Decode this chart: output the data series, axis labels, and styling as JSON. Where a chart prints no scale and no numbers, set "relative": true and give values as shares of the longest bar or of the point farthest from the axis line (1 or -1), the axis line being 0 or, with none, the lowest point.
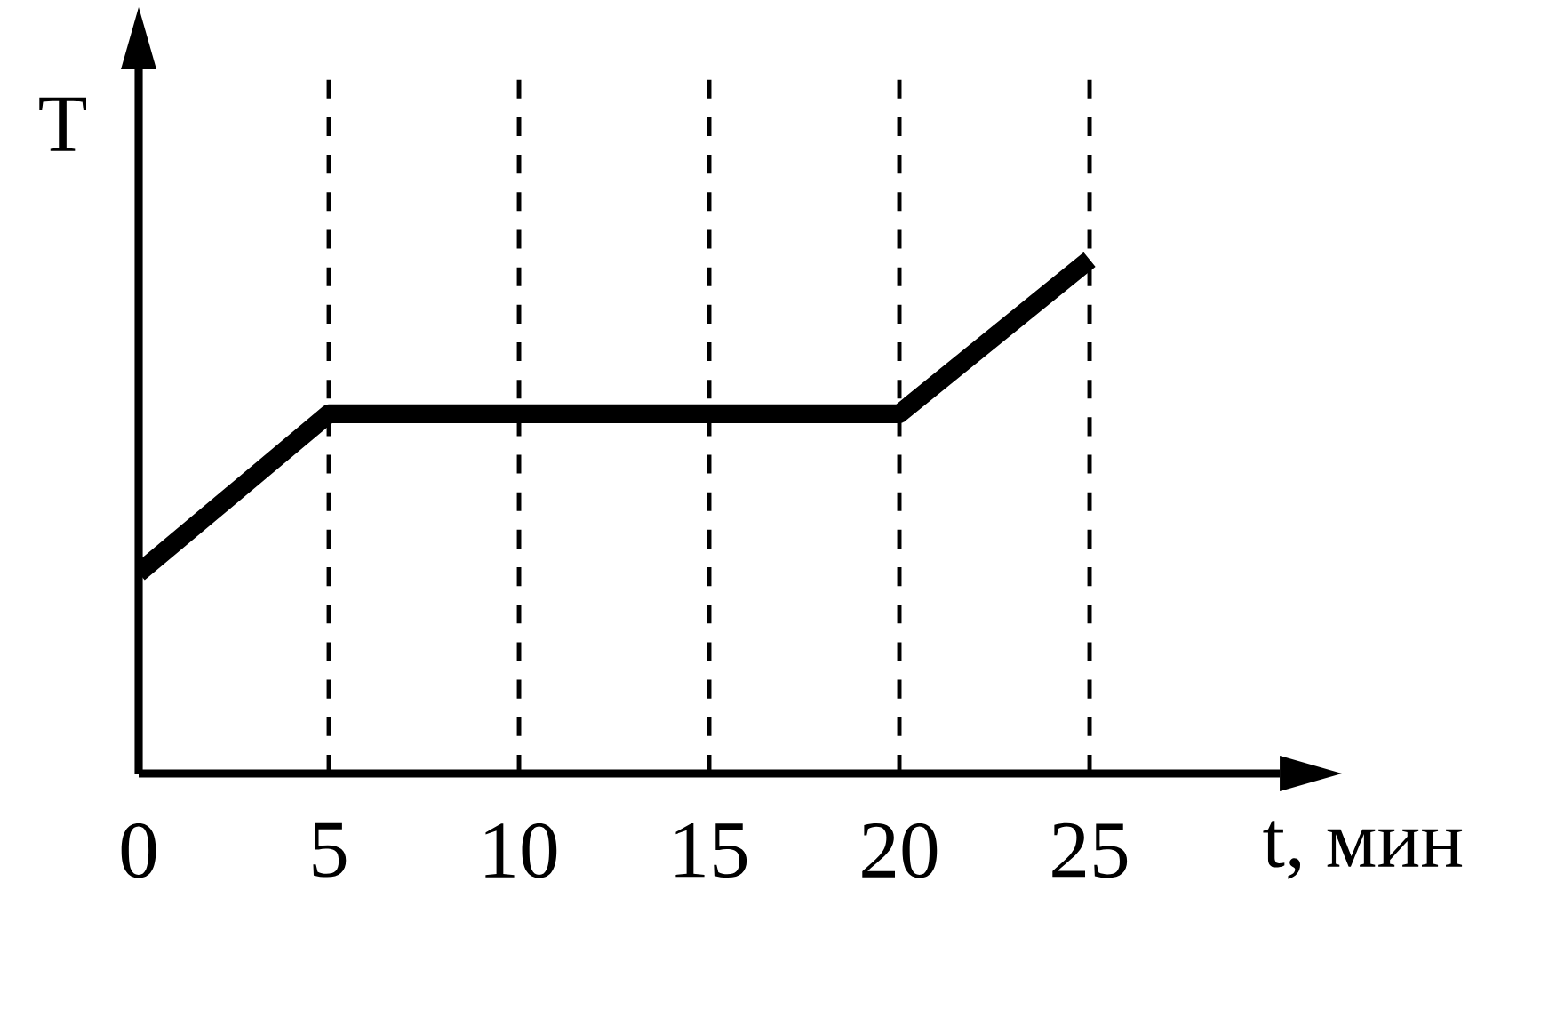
{
  "chart_data": {
    "type": "line",
    "xlabel": "t, мин",
    "ylabel": "T",
    "relative": true,
    "x": [
      0,
      5,
      20,
      25
    ],
    "series": [
      {
        "color": "#000000",
        "values": [
          0.39,
          0.7,
          0.7,
          1
        ]
      }
    ],
    "xlim": [
      0,
      30
    ],
    "xticks": [
      0,
      5,
      10,
      15,
      20,
      25
    ],
    "grid": "x"
  }
}
